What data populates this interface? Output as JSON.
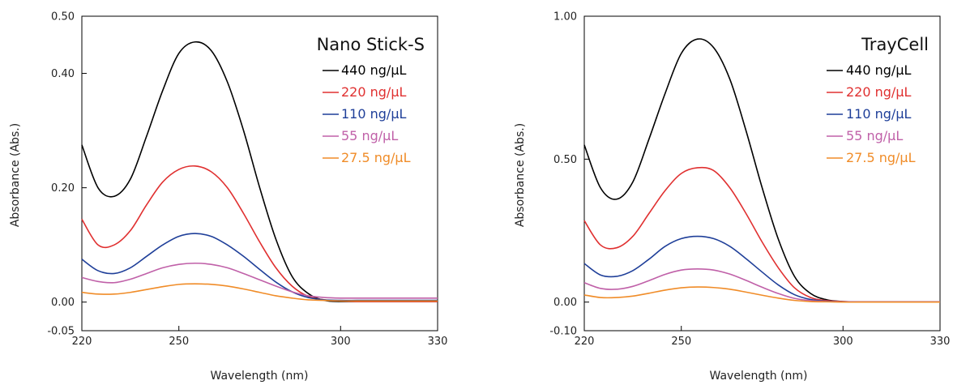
{
  "chart_data": [
    {
      "type": "line",
      "title": "Nano Stick-S",
      "xlabel": "Wavelength (nm)",
      "ylabel": "Absorbance (Abs.)",
      "xlim": [
        220,
        330
      ],
      "ylim": [
        -0.05,
        0.5
      ],
      "xticks": [
        220,
        250,
        300,
        330
      ],
      "xtick_labels": [
        "220",
        "250",
        "300",
        "330"
      ],
      "yticks": [
        -0.05,
        0.0,
        0.2,
        0.4,
        0.5
      ],
      "ytick_labels": [
        "-0.05",
        "0.00",
        "0.20",
        "0.40",
        "0.50"
      ],
      "legend_position": "top-right",
      "grid": false,
      "x": [
        220,
        225,
        230,
        235,
        240,
        245,
        250,
        255,
        260,
        265,
        270,
        275,
        280,
        285,
        290,
        295,
        300,
        305,
        310,
        315,
        320,
        325,
        330
      ],
      "series": [
        {
          "name": "440 ng/µL",
          "color": "#000000",
          "values": [
            0.275,
            0.2,
            0.185,
            0.215,
            0.29,
            0.37,
            0.435,
            0.455,
            0.44,
            0.385,
            0.3,
            0.2,
            0.11,
            0.045,
            0.015,
            0.003,
            0.001,
            0.001,
            0.001,
            0.001,
            0.001,
            0.001,
            0.001
          ]
        },
        {
          "name": "220 ng/µL",
          "color": "#e03030",
          "values": [
            0.145,
            0.1,
            0.1,
            0.125,
            0.17,
            0.21,
            0.232,
            0.238,
            0.228,
            0.2,
            0.155,
            0.105,
            0.06,
            0.028,
            0.01,
            0.004,
            0.002,
            0.001,
            0.001,
            0.001,
            0.001,
            0.001,
            0.001
          ]
        },
        {
          "name": "110 ng/µL",
          "color": "#1f3f99",
          "values": [
            0.075,
            0.055,
            0.05,
            0.06,
            0.08,
            0.1,
            0.115,
            0.12,
            0.115,
            0.1,
            0.08,
            0.057,
            0.035,
            0.018,
            0.008,
            0.004,
            0.003,
            0.003,
            0.003,
            0.003,
            0.003,
            0.003,
            0.003
          ]
        },
        {
          "name": "55 ng/µL",
          "color": "#c060a8",
          "values": [
            0.043,
            0.036,
            0.034,
            0.04,
            0.05,
            0.06,
            0.066,
            0.068,
            0.066,
            0.06,
            0.05,
            0.039,
            0.028,
            0.018,
            0.011,
            0.008,
            0.007,
            0.007,
            0.007,
            0.007,
            0.007,
            0.007,
            0.007
          ]
        },
        {
          "name": "27.5 ng/µL",
          "color": "#f08c28",
          "values": [
            0.017,
            0.014,
            0.014,
            0.017,
            0.022,
            0.027,
            0.031,
            0.032,
            0.031,
            0.028,
            0.023,
            0.017,
            0.011,
            0.007,
            0.004,
            0.003,
            0.002,
            0.002,
            0.002,
            0.002,
            0.002,
            0.002,
            0.002
          ]
        }
      ]
    },
    {
      "type": "line",
      "title": "TrayCell",
      "xlabel": "Wavelength (nm)",
      "ylabel": "Absorbance (Abs.)",
      "xlim": [
        220,
        330
      ],
      "ylim": [
        -0.1,
        1.0
      ],
      "xticks": [
        220,
        250,
        300,
        330
      ],
      "xtick_labels": [
        "220",
        "250",
        "300",
        "330"
      ],
      "yticks": [
        -0.1,
        0.0,
        0.5,
        1.0
      ],
      "ytick_labels": [
        "-0.10",
        "0.00",
        "0.50",
        "1.00"
      ],
      "legend_position": "top-right",
      "grid": false,
      "x": [
        220,
        225,
        230,
        235,
        240,
        245,
        250,
        255,
        260,
        265,
        270,
        275,
        280,
        285,
        290,
        295,
        300,
        305,
        310,
        315,
        320,
        325,
        330
      ],
      "series": [
        {
          "name": "440 ng/µL",
          "color": "#000000",
          "values": [
            0.55,
            0.4,
            0.36,
            0.42,
            0.57,
            0.73,
            0.87,
            0.92,
            0.89,
            0.78,
            0.6,
            0.4,
            0.22,
            0.09,
            0.03,
            0.008,
            0.002,
            0.001,
            0.001,
            0.001,
            0.001,
            0.001,
            0.001
          ]
        },
        {
          "name": "220 ng/µL",
          "color": "#e03030",
          "values": [
            0.285,
            0.2,
            0.19,
            0.23,
            0.31,
            0.39,
            0.45,
            0.47,
            0.46,
            0.4,
            0.31,
            0.21,
            0.12,
            0.05,
            0.016,
            0.005,
            0.002,
            0.001,
            0.001,
            0.001,
            0.001,
            0.001,
            0.001
          ]
        },
        {
          "name": "110 ng/µL",
          "color": "#1f3f99",
          "values": [
            0.135,
            0.095,
            0.09,
            0.11,
            0.15,
            0.195,
            0.222,
            0.23,
            0.222,
            0.195,
            0.152,
            0.105,
            0.06,
            0.026,
            0.009,
            0.003,
            0.001,
            0.001,
            0.001,
            0.001,
            0.001,
            0.001,
            0.001
          ]
        },
        {
          "name": "55 ng/µL",
          "color": "#c060a8",
          "values": [
            0.068,
            0.048,
            0.045,
            0.055,
            0.075,
            0.097,
            0.112,
            0.116,
            0.112,
            0.098,
            0.076,
            0.052,
            0.03,
            0.013,
            0.005,
            0.002,
            0.001,
            0.001,
            0.001,
            0.001,
            0.001,
            0.001,
            0.001
          ]
        },
        {
          "name": "27.5 ng/µL",
          "color": "#f08c28",
          "values": [
            0.025,
            0.016,
            0.016,
            0.021,
            0.031,
            0.042,
            0.05,
            0.053,
            0.051,
            0.045,
            0.035,
            0.024,
            0.014,
            0.006,
            0.002,
            0.001,
            0.0,
            0.0,
            0.0,
            0.0,
            0.0,
            0.0,
            0.0
          ]
        }
      ]
    }
  ]
}
